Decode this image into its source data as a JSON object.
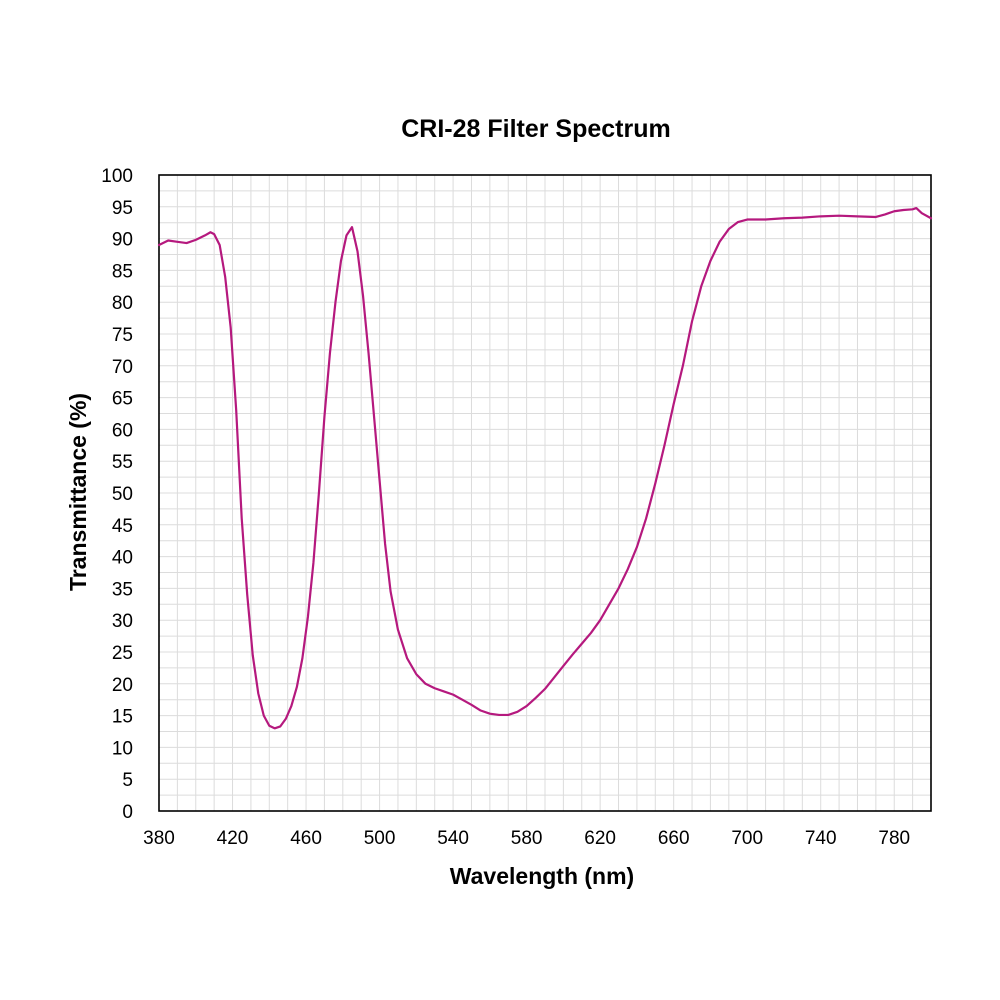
{
  "chart_data": {
    "type": "line",
    "title": "CRI-28 Filter Spectrum",
    "xlabel": "Wavelength (nm)",
    "ylabel": "Transmittance (%)",
    "xlim": [
      380,
      800
    ],
    "ylim": [
      0,
      100
    ],
    "xticks": [
      380,
      420,
      460,
      500,
      540,
      580,
      620,
      660,
      700,
      740,
      780
    ],
    "yticks": [
      0,
      5,
      10,
      15,
      20,
      25,
      30,
      35,
      40,
      45,
      50,
      55,
      60,
      65,
      70,
      75,
      80,
      85,
      90,
      95,
      100
    ],
    "x_minor_step": 10,
    "y_minor_step": 2.5,
    "grid": true,
    "series": [
      {
        "color": "#b5197e",
        "x": [
          380,
          385,
          390,
          395,
          400,
          405,
          408,
          410,
          413,
          416,
          419,
          422,
          425,
          428,
          431,
          434,
          437,
          440,
          443,
          446,
          449,
          452,
          455,
          458,
          461,
          464,
          467,
          470,
          473,
          476,
          479,
          482,
          485,
          488,
          491,
          494,
          497,
          500,
          503,
          506,
          510,
          515,
          520,
          525,
          530,
          535,
          540,
          545,
          550,
          555,
          560,
          565,
          570,
          575,
          580,
          585,
          590,
          595,
          600,
          605,
          610,
          615,
          620,
          625,
          630,
          635,
          640,
          645,
          650,
          655,
          660,
          665,
          670,
          675,
          680,
          685,
          690,
          695,
          700,
          705,
          710,
          720,
          730,
          740,
          750,
          760,
          770,
          775,
          780,
          785,
          790,
          792,
          795,
          800
        ],
        "y": [
          89.0,
          89.7,
          89.5,
          89.3,
          89.8,
          90.5,
          91.0,
          90.7,
          89.0,
          84.0,
          76.0,
          63.0,
          46.0,
          34.0,
          24.5,
          18.5,
          15.0,
          13.4,
          13.0,
          13.3,
          14.5,
          16.5,
          19.5,
          24.0,
          30.5,
          39.0,
          50.0,
          62.0,
          72.0,
          80.0,
          86.5,
          90.5,
          91.8,
          88.0,
          81.0,
          72.0,
          62.0,
          52.0,
          42.0,
          34.5,
          28.5,
          24.0,
          21.5,
          20.0,
          19.3,
          18.8,
          18.3,
          17.5,
          16.7,
          15.8,
          15.3,
          15.1,
          15.1,
          15.6,
          16.5,
          17.8,
          19.2,
          21.0,
          22.8,
          24.6,
          26.3,
          28.0,
          30.0,
          32.5,
          35.0,
          38.0,
          41.5,
          46.0,
          51.5,
          57.5,
          64.0,
          70.0,
          77.0,
          82.5,
          86.5,
          89.5,
          91.5,
          92.6,
          93.0,
          93.0,
          93.0,
          93.2,
          93.3,
          93.5,
          93.6,
          93.5,
          93.4,
          93.8,
          94.3,
          94.5,
          94.6,
          94.8,
          94.0,
          93.2
        ]
      }
    ]
  }
}
